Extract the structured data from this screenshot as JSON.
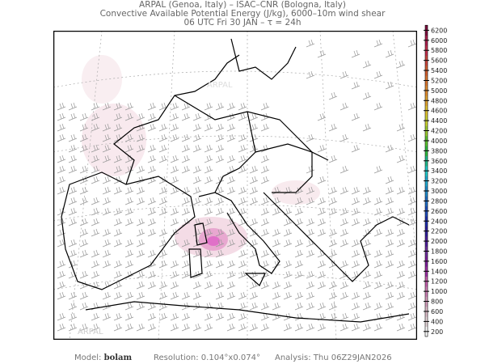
{
  "header": {
    "line1": "ARPAL (Genoa, Italy)  –  ISAC–CNR (Bologna, Italy)",
    "line2": "Convective Available Potential Energy (J/kg), 6000–10m wind shear",
    "line3": "06 UTC Fri 30 JAN  –  τ = 24h"
  },
  "map": {
    "field": "CAPE",
    "overlay": "wind shear barbs",
    "watermark": "ARPAL",
    "max_cape_region_color": "#e070c8"
  },
  "colorbar": {
    "labels": [
      "200",
      "400",
      "600",
      "800",
      "1000",
      "1200",
      "1400",
      "1600",
      "1800",
      "2000",
      "2200",
      "2400",
      "2600",
      "2800",
      "3000",
      "3200",
      "3400",
      "3600",
      "3800",
      "4000",
      "4200",
      "4400",
      "4600",
      "4800",
      "5000",
      "5200",
      "5400",
      "5600",
      "5800",
      "6000",
      "6200"
    ],
    "colors": [
      "#ffffff",
      "#e8d8dc",
      "#e0c0cc",
      "#d8a0c0",
      "#d080b8",
      "#c860b0",
      "#a030a8",
      "#8020a0",
      "#7030a0",
      "#5020a0",
      "#3020a0",
      "#2030b0",
      "#2050c0",
      "#2070c8",
      "#2090d0",
      "#20b0d8",
      "#20d0d0",
      "#20c090",
      "#30c040",
      "#60c830",
      "#a0d030",
      "#d0d830",
      "#e8c830",
      "#e8a830",
      "#e89030",
      "#e07830",
      "#d86030",
      "#d04840",
      "#c83050",
      "#b02050",
      "#801040"
    ]
  },
  "footer": {
    "model_label": "Model:",
    "model_value": "bolam",
    "resolution": "Resolution: 0.104°x0.074°",
    "analysis": "Analysis: Thu 06Z29JAN2026"
  }
}
